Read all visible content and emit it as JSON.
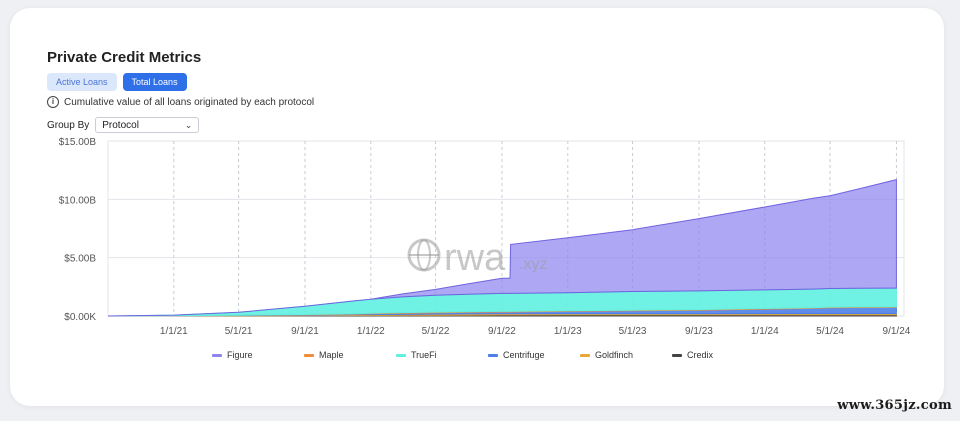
{
  "header": {
    "title": "Private Credit Metrics",
    "tabs": [
      {
        "label": "Active Loans",
        "active": false
      },
      {
        "label": "Total Loans",
        "active": true
      }
    ],
    "info_text": "Cumulative value of all loans originated by each protocol",
    "group_by_label": "Group By",
    "group_by_value": "Protocol"
  },
  "watermark": {
    "logo_text": "rwa",
    "logo_suffix": ".xyz"
  },
  "site_watermark": "www.365jz.com",
  "chart_data": {
    "type": "area",
    "stacked": true,
    "xlabel": "",
    "ylabel": "",
    "x_ticks": [
      "1/1/21",
      "5/1/21",
      "9/1/21",
      "1/1/22",
      "5/1/22",
      "9/1/22",
      "1/1/23",
      "5/1/23",
      "9/1/23",
      "1/1/24",
      "5/1/24",
      "9/1/24"
    ],
    "y_ticks": [
      "$0.00K",
      "$5.00B",
      "$10.00B",
      "$15.00B"
    ],
    "ylim": [
      0,
      15
    ],
    "y_unit": "billions USD",
    "x_dates": [
      "9/1/20",
      "1/1/21",
      "5/1/21",
      "9/1/21",
      "12/1/21",
      "1/1/22",
      "3/1/22",
      "5/1/22",
      "7/1/22",
      "9/1/22",
      "9/16/22",
      "9/17/22",
      "1/1/23",
      "5/1/23",
      "9/1/23",
      "1/1/24",
      "4/1/24",
      "5/1/24",
      "7/1/24",
      "9/1/24"
    ],
    "series": [
      {
        "name": "Credix",
        "color": "#444444",
        "values": [
          0,
          0.01,
          0.02,
          0.03,
          0.04,
          0.05,
          0.06,
          0.07,
          0.08,
          0.09,
          0.09,
          0.09,
          0.1,
          0.1,
          0.1,
          0.11,
          0.11,
          0.11,
          0.11,
          0.11
        ]
      },
      {
        "name": "Goldfinch",
        "color": "#e8a838",
        "values": [
          0,
          0.01,
          0.02,
          0.04,
          0.06,
          0.07,
          0.08,
          0.09,
          0.1,
          0.1,
          0.1,
          0.1,
          0.1,
          0.1,
          0.1,
          0.1,
          0.1,
          0.1,
          0.1,
          0.1
        ]
      },
      {
        "name": "Centrifuge",
        "color": "#4c7fe8",
        "values": [
          0,
          0.01,
          0.02,
          0.04,
          0.06,
          0.08,
          0.1,
          0.12,
          0.14,
          0.15,
          0.15,
          0.15,
          0.2,
          0.25,
          0.3,
          0.38,
          0.45,
          0.5,
          0.52,
          0.53
        ]
      },
      {
        "name": "Maple",
        "color": "#f08c3a",
        "values": [
          0,
          0,
          0.01,
          0.02,
          0.03,
          0.04,
          0.05,
          0.05,
          0.05,
          0.05,
          0.05,
          0.05,
          0.05,
          0.05,
          0.05,
          0.05,
          0.05,
          0.05,
          0.05,
          0.05
        ]
      },
      {
        "name": "TrueFi",
        "color": "#5ff0e0",
        "values": [
          0,
          0.05,
          0.25,
          0.7,
          1.1,
          1.2,
          1.35,
          1.45,
          1.5,
          1.55,
          1.55,
          1.55,
          1.55,
          1.6,
          1.6,
          1.6,
          1.6,
          1.6,
          1.6,
          1.6
        ]
      },
      {
        "name": "Figure",
        "color": "#8f85ee",
        "values": [
          0,
          0,
          0,
          0,
          0,
          0,
          0.25,
          0.5,
          0.9,
          1.3,
          1.3,
          4.2,
          4.7,
          5.3,
          6.2,
          7.1,
          7.8,
          7.95,
          8.6,
          9.3
        ]
      }
    ],
    "legend_order": [
      "Figure",
      "Maple",
      "TrueFi",
      "Centrifuge",
      "Goldfinch",
      "Credix"
    ],
    "legend_position": "bottom",
    "grid": true
  }
}
